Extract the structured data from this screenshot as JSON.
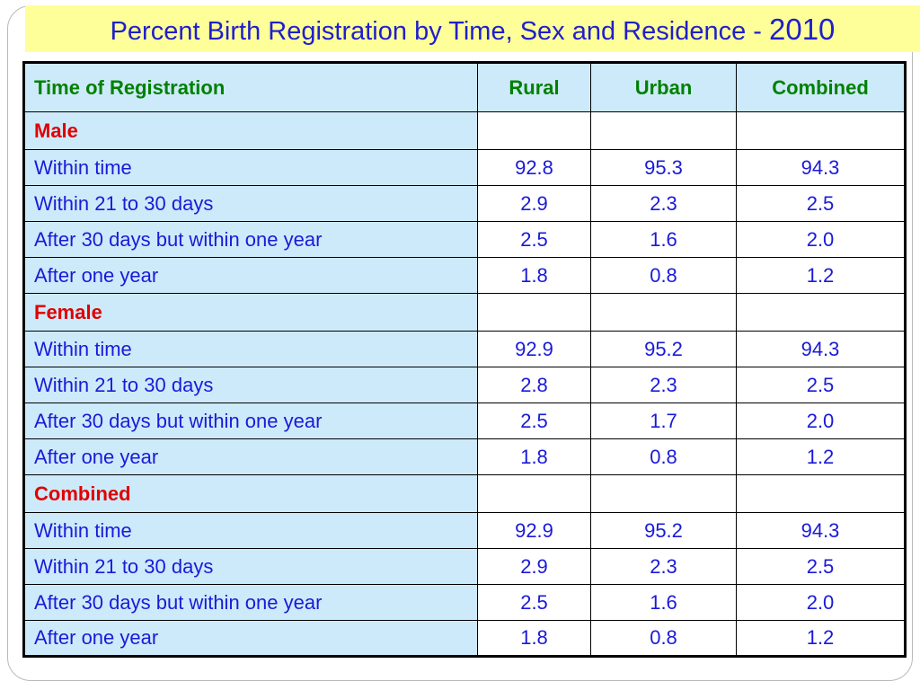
{
  "title": {
    "text": "Percent Birth Registration by Time, Sex and Residence -",
    "year": "2010"
  },
  "table": {
    "headers": [
      "Time of Registration",
      "Rural",
      "Urban",
      "Combined"
    ],
    "groups": [
      {
        "label": "Male",
        "rows": [
          {
            "label": "Within  time",
            "rural": "92.8",
            "urban": "95.3",
            "combined": "94.3"
          },
          {
            "label": "Within 21 to 30 days",
            "rural": "2.9",
            "urban": "2.3",
            "combined": "2.5"
          },
          {
            "label": "After 30 days but within one year",
            "rural": "2.5",
            "urban": "1.6",
            "combined": "2.0"
          },
          {
            "label": "After one  year",
            "rural": "1.8",
            "urban": "0.8",
            "combined": "1.2"
          }
        ]
      },
      {
        "label": "Female",
        "rows": [
          {
            "label": "Within  time",
            "rural": "92.9",
            "urban": "95.2",
            "combined": "94.3"
          },
          {
            "label": "Within 21 to 30 days",
            "rural": "2.8",
            "urban": "2.3",
            "combined": "2.5"
          },
          {
            "label": "After 30 days but within one year",
            "rural": "2.5",
            "urban": "1.7",
            "combined": "2.0"
          },
          {
            "label": "After one  year",
            "rural": "1.8",
            "urban": "0.8",
            "combined": "1.2"
          }
        ]
      },
      {
        "label": "Combined",
        "rows": [
          {
            "label": "Within  time",
            "rural": "92.9",
            "urban": "95.2",
            "combined": "94.3"
          },
          {
            "label": "Within 21 to 30 days",
            "rural": "2.9",
            "urban": "2.3",
            "combined": "2.5"
          },
          {
            "label": "After 30 days but within one year",
            "rural": "2.5",
            "urban": "1.6",
            "combined": "2.0"
          },
          {
            "label": "After one  year",
            "rural": "1.8",
            "urban": "0.8",
            "combined": "1.2"
          }
        ]
      }
    ]
  },
  "colors": {
    "title_bg": "#ffff99",
    "title_text": "#1f1fcc",
    "header_text": "#008000",
    "group_text": "#e00000",
    "body_text": "#1a1ad9",
    "label_col_bg": "#cdeafa"
  }
}
